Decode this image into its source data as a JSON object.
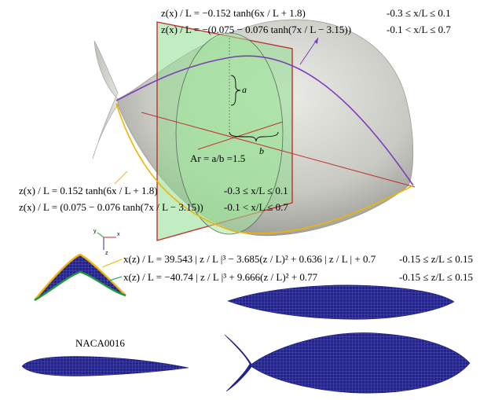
{
  "upper_profile": {
    "eq_fore": "z(x) / L = −0.152 tanh(6x / L + 1.8)",
    "range_fore": "-0.3 ≤ x/L ≤ 0.1",
    "eq_aft": "z(x) / L = −(0.075 − 0.076 tanh(7x / L − 3.15))",
    "range_aft": "-0.1 < x/L ≤ 0.7"
  },
  "lower_profile": {
    "eq_fore": "z(x) / L = 0.152 tanh(6x / L + 1.8)",
    "range_fore": "-0.3 ≤ x/L ≤ 0.1",
    "eq_aft": "z(x) / L = (0.075 − 0.076 tanh(7x / L − 3.15))",
    "range_aft": "-0.1 < x/L ≤ 0.7"
  },
  "cross_section": {
    "a_label": "a",
    "b_label": "b",
    "aspect_ratio": "Ar = a/b =1.5"
  },
  "section_profile": {
    "eq_upper": "x(z) / L = 39.543 | z / L |³ − 3.685(z / L)² + 0.636 | z / L | + 0.7",
    "range_upper": "-0.15 ≤ z/L ≤ 0.15",
    "eq_lower": "x(z) / L = −40.74 | z / L |³ + 9.666(z / L)² + 0.77",
    "range_lower": "-0.15 ≤ z/L ≤ 0.15"
  },
  "axes": {
    "x": "x",
    "y": "y",
    "z": "z"
  },
  "naca_label": "NACA0016",
  "colors": {
    "upper_curve": "#7b3fb8",
    "lower_curve": "#f0b400",
    "plane": "#8fdc8f",
    "plane_edge": "#c0302f",
    "mesh": "#1c1c8a",
    "body": "#c8c8c4"
  }
}
